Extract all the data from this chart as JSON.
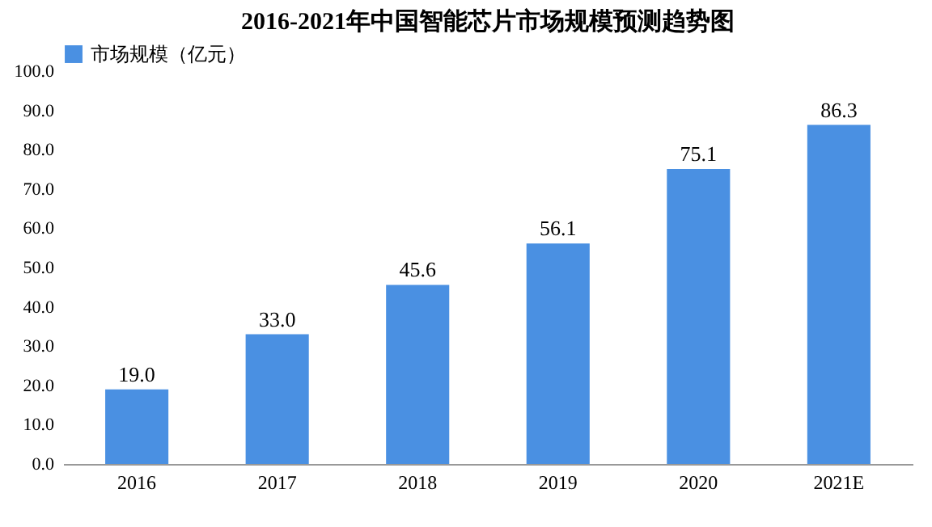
{
  "chart_data": {
    "type": "bar",
    "title": "2016-2021年中国智能芯片市场规模预测趋势图",
    "categories": [
      "2016",
      "2017",
      "2018",
      "2019",
      "2020",
      "2021E"
    ],
    "series": [
      {
        "name": "市场规模（亿元）",
        "color": "#4a90e2",
        "values": [
          19.0,
          33.0,
          45.6,
          56.1,
          75.1,
          86.3
        ],
        "value_labels": [
          "19.0",
          "33.0",
          "45.6",
          "56.1",
          "75.1",
          "86.3"
        ]
      }
    ],
    "ylim": [
      0,
      100
    ],
    "yticks": [
      {
        "value": 0,
        "label": "0.0"
      },
      {
        "value": 10,
        "label": "10.0"
      },
      {
        "value": 20,
        "label": "20.0"
      },
      {
        "value": 30,
        "label": "30.0"
      },
      {
        "value": 40,
        "label": "40.0"
      },
      {
        "value": 50,
        "label": "50.0"
      },
      {
        "value": 60,
        "label": "60.0"
      },
      {
        "value": 70,
        "label": "70.0"
      },
      {
        "value": 80,
        "label": "80.0"
      },
      {
        "value": 90,
        "label": "90.0"
      },
      {
        "value": 100,
        "label": "100.0"
      }
    ],
    "grid": false,
    "legend": "top"
  }
}
